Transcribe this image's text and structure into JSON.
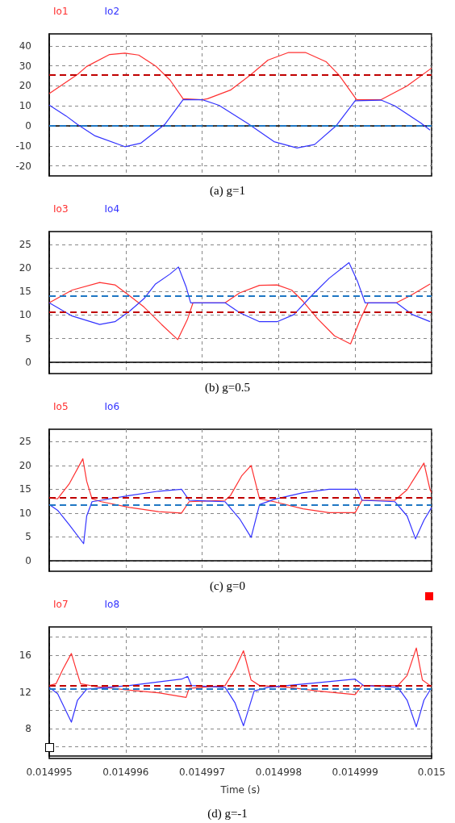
{
  "chart_data": [
    {
      "type": "line",
      "legend": "top left",
      "grid": true,
      "marker": "none",
      "tick_labels": "y",
      "annotations": [
        "(a) g=1"
      ],
      "xlim": [
        0.014995,
        0.015
      ],
      "xticks": [
        0.014995,
        0.014996,
        0.014997,
        0.014998,
        0.014999,
        0.015
      ],
      "ylim": [
        -25,
        46
      ],
      "yticks": [
        -20,
        -10,
        0,
        10,
        20,
        30,
        40
      ],
      "series": [
        {
          "name": "Io1",
          "color": "#ff3030",
          "x": [
            0.014995,
            0.01499537,
            0.01499549,
            0.01499579,
            0.01499599,
            0.01499617,
            0.01499639,
            0.01499658,
            0.01499675,
            0.014997,
            0.01499707,
            0.01499737,
            0.01499764,
            0.01499786,
            0.01499813,
            0.01499835,
            0.01499862,
            0.01499879,
            0.01499902,
            0.01499934,
            0.01499968,
            0.015
          ],
          "values": [
            16.1,
            25.7,
            29.7,
            35.7,
            36.4,
            35.4,
            30,
            22.9,
            13.6,
            13.1,
            13.6,
            17.9,
            25.7,
            32.9,
            36.7,
            36.7,
            32.1,
            25.4,
            13.1,
            13.1,
            20,
            28.9
          ]
        },
        {
          "name": "Io2",
          "color": "#3333ff",
          "x": [
            0.014995,
            0.01499522,
            0.01499537,
            0.0149956,
            0.01499599,
            0.0149962,
            0.01499651,
            0.01499675,
            0.014997,
            0.01499722,
            0.0149976,
            0.01499794,
            0.01499824,
            0.01499847,
            0.01499875,
            0.014999,
            0.01499934,
            0.01499952,
            0.01499986,
            0.01499998
          ],
          "values": [
            10.4,
            5,
            0.7,
            -5,
            -10.4,
            -8.6,
            0.7,
            13.1,
            13.1,
            10.3,
            1.1,
            -7.9,
            -11,
            -9.3,
            0,
            12.6,
            12.9,
            10,
            1.4,
            -2.1
          ]
        }
      ],
      "ref_lines": [
        {
          "axis": "y",
          "value": 25.4,
          "color": "#c00000",
          "line_style": "dashed"
        },
        {
          "axis": "y",
          "value": 0,
          "color": "#1f77c4",
          "line_style": "dashed"
        }
      ]
    },
    {
      "type": "line",
      "legend": "top left",
      "grid": true,
      "marker": "none",
      "tick_labels": "y",
      "annotations": [
        "(b) g=0.5"
      ],
      "xlim": [
        0.014995,
        0.015
      ],
      "xticks": [
        0.014995,
        0.014996,
        0.014997,
        0.014998,
        0.014999,
        0.015
      ],
      "ylim": [
        -2.4,
        27.7
      ],
      "yticks": [
        0,
        5,
        10,
        15,
        20,
        25
      ],
      "series": [
        {
          "name": "Io3",
          "color": "#ff3030",
          "x": [
            0.014995,
            0.0149953,
            0.01499566,
            0.01499586,
            0.01499605,
            0.01499624,
            0.01499647,
            0.01499668,
            0.01499681,
            0.01499688,
            0.0149973,
            0.01499749,
            0.01499775,
            0.01499798,
            0.01499817,
            0.01499832,
            0.01499851,
            0.01499873,
            0.01499894,
            0.01499907,
            0.01499917,
            0.01499954,
            0.01499972,
            0.01499998
          ],
          "values": [
            12.6,
            15.3,
            16.9,
            16.4,
            14.1,
            11.7,
            8.0,
            4.8,
            9.2,
            12.6,
            12.6,
            14.7,
            16.3,
            16.4,
            15.3,
            12.9,
            9.2,
            5.6,
            3.9,
            9.2,
            12.6,
            12.6,
            14.1,
            16.6
          ]
        },
        {
          "name": "Io4",
          "color": "#3333ff",
          "x": [
            0.014995,
            0.0149953,
            0.01499566,
            0.01499586,
            0.01499605,
            0.01499624,
            0.01499639,
            0.01499658,
            0.01499669,
            0.01499679,
            0.01499685,
            0.0149973,
            0.01499749,
            0.01499775,
            0.01499798,
            0.0149982,
            0.01499843,
            0.01499866,
            0.01499892,
            0.01499903,
            0.01499913,
            0.01499954,
            0.01499975,
            0.01499998
          ],
          "values": [
            12.6,
            9.8,
            8.0,
            8.6,
            10.8,
            13.5,
            16.6,
            18.7,
            20.2,
            16,
            12.6,
            12.6,
            10.5,
            8.6,
            8.6,
            10.1,
            14.1,
            17.8,
            21.1,
            17.2,
            12.6,
            12.6,
            10.1,
            8.6
          ]
        }
      ],
      "ref_lines": [
        {
          "axis": "y",
          "value": 10.7,
          "color": "#c00000",
          "line_style": "dashed"
        },
        {
          "axis": "y",
          "value": 14.1,
          "color": "#1f77c4",
          "line_style": "dashed"
        }
      ]
    },
    {
      "type": "line",
      "legend": "top left",
      "grid": true,
      "marker": "none",
      "tick_labels": "y",
      "annotations": [
        "(c) g=0"
      ],
      "xlim": [
        0.014995,
        0.015
      ],
      "xticks": [
        0.014995,
        0.014996,
        0.014997,
        0.014998,
        0.014999,
        0.015
      ],
      "ylim": [
        -2.2,
        27.6
      ],
      "yticks": [
        0,
        5,
        10,
        15,
        20,
        25
      ],
      "series": [
        {
          "name": "Io5",
          "color": "#ff3030",
          "x": [
            0.014995,
            0.01499511,
            0.01499526,
            0.01499544,
            0.01499549,
            0.01499556,
            0.01499568,
            0.01499605,
            0.01499643,
            0.01499673,
            0.01499683,
            0.0149973,
            0.01499737,
            0.01499752,
            0.01499764,
            0.01499775,
            0.01499794,
            0.01499832,
            0.01499866,
            0.014999,
            0.01499909,
            0.01499952,
            0.01499968,
            0.0149999,
            0.01499998,
            0.015
          ],
          "values": [
            13.2,
            13,
            16.1,
            21.4,
            16.7,
            13,
            12.4,
            11.2,
            10.3,
            10,
            12.4,
            12.7,
            13.7,
            17.9,
            20,
            13,
            12.4,
            10.9,
            10.1,
            10.1,
            12.7,
            12.7,
            14.9,
            20.5,
            14.9,
            14.3
          ]
        },
        {
          "name": "Io6",
          "color": "#3333ff",
          "x": [
            0.014995,
            0.01499511,
            0.01499526,
            0.01499545,
            0.01499549,
            0.01499556,
            0.01499568,
            0.01499605,
            0.01499643,
            0.01499673,
            0.01499683,
            0.0149973,
            0.01499749,
            0.01499764,
            0.01499775,
            0.01499794,
            0.01499832,
            0.01499866,
            0.01499903,
            0.01499909,
            0.01499952,
            0.01499968,
            0.01499979,
            0.0149999,
            0.015
          ],
          "values": [
            11.8,
            10.6,
            7.6,
            3.6,
            9.4,
            12.4,
            12.7,
            13.7,
            14.6,
            15.0,
            12.7,
            12.4,
            8.8,
            4.9,
            11.8,
            12.9,
            14.3,
            15.0,
            15.0,
            12.7,
            12.4,
            9.4,
            4.6,
            8.5,
            11.2
          ]
        }
      ],
      "ref_lines": [
        {
          "axis": "y",
          "value": 13.3,
          "color": "#c00000",
          "line_style": "dashed"
        },
        {
          "axis": "y",
          "value": 11.7,
          "color": "#1f77c4",
          "line_style": "dashed"
        }
      ]
    },
    {
      "type": "line",
      "legend": "top left",
      "grid": true,
      "marker": "none",
      "xlabel": "Time (s)",
      "annotations": [
        "(d) g=-1"
      ],
      "xlim": [
        0.014995,
        0.015
      ],
      "xticks": [
        0.014995,
        0.014996,
        0.014997,
        0.014998,
        0.014999,
        0.015
      ],
      "ylim": [
        5,
        19.1
      ],
      "yticks": [
        {
          "value": 6,
          "label": null
        },
        8,
        {
          "value": 10,
          "label": null
        },
        12,
        {
          "value": 14,
          "label": null
        },
        16,
        {
          "value": 18,
          "label": null
        }
      ],
      "series": [
        {
          "name": "Io7",
          "color": "#ff3030",
          "x": [
            0.014995,
            0.01499509,
            0.01499518,
            0.01499529,
            0.01499535,
            0.01499541,
            0.0149956,
            0.01499605,
            0.01499643,
            0.01499679,
            0.01499683,
            0.0149973,
            0.01499743,
            0.01499754,
            0.01499764,
            0.01499775,
            0.01499813,
            0.01499851,
            0.014999,
            0.01499909,
            0.01499956,
            0.01499968,
            0.0149998,
            0.01499988,
            0.01499998
          ],
          "values": [
            12.7,
            12.9,
            14.5,
            16.2,
            14.5,
            12.9,
            12.6,
            12.2,
            11.9,
            11.4,
            12.4,
            12.7,
            14.5,
            16.5,
            13.3,
            12.7,
            12.5,
            12.1,
            11.7,
            12.7,
            12.7,
            13.8,
            16.8,
            13.3,
            12.7
          ]
        },
        {
          "name": "Io8",
          "color": "#3333ff",
          "x": [
            0.014995,
            0.01499511,
            0.01499529,
            0.01499537,
            0.01499549,
            0.01499605,
            0.01499643,
            0.01499673,
            0.01499681,
            0.01499686,
            0.0149973,
            0.01499743,
            0.01499754,
            0.01499768,
            0.01499786,
            0.01499851,
            0.014999,
            0.01499911,
            0.01499956,
            0.01499968,
            0.0149998,
            0.0149999,
            0.01499998
          ],
          "values": [
            12.5,
            11.8,
            8.7,
            11.1,
            12.3,
            12.7,
            13.1,
            13.4,
            13.7,
            12.7,
            12.5,
            10.8,
            8.3,
            12.1,
            12.5,
            13,
            13.4,
            12.7,
            12.5,
            11.1,
            8.2,
            11.1,
            12.2
          ]
        }
      ],
      "ref_lines": [
        {
          "axis": "y",
          "value": 12.7,
          "color": "#c00000",
          "line_style": "dashed"
        },
        {
          "axis": "y",
          "value": 12.3,
          "color": "#1f77c4",
          "line_style": "dashed"
        }
      ]
    }
  ]
}
